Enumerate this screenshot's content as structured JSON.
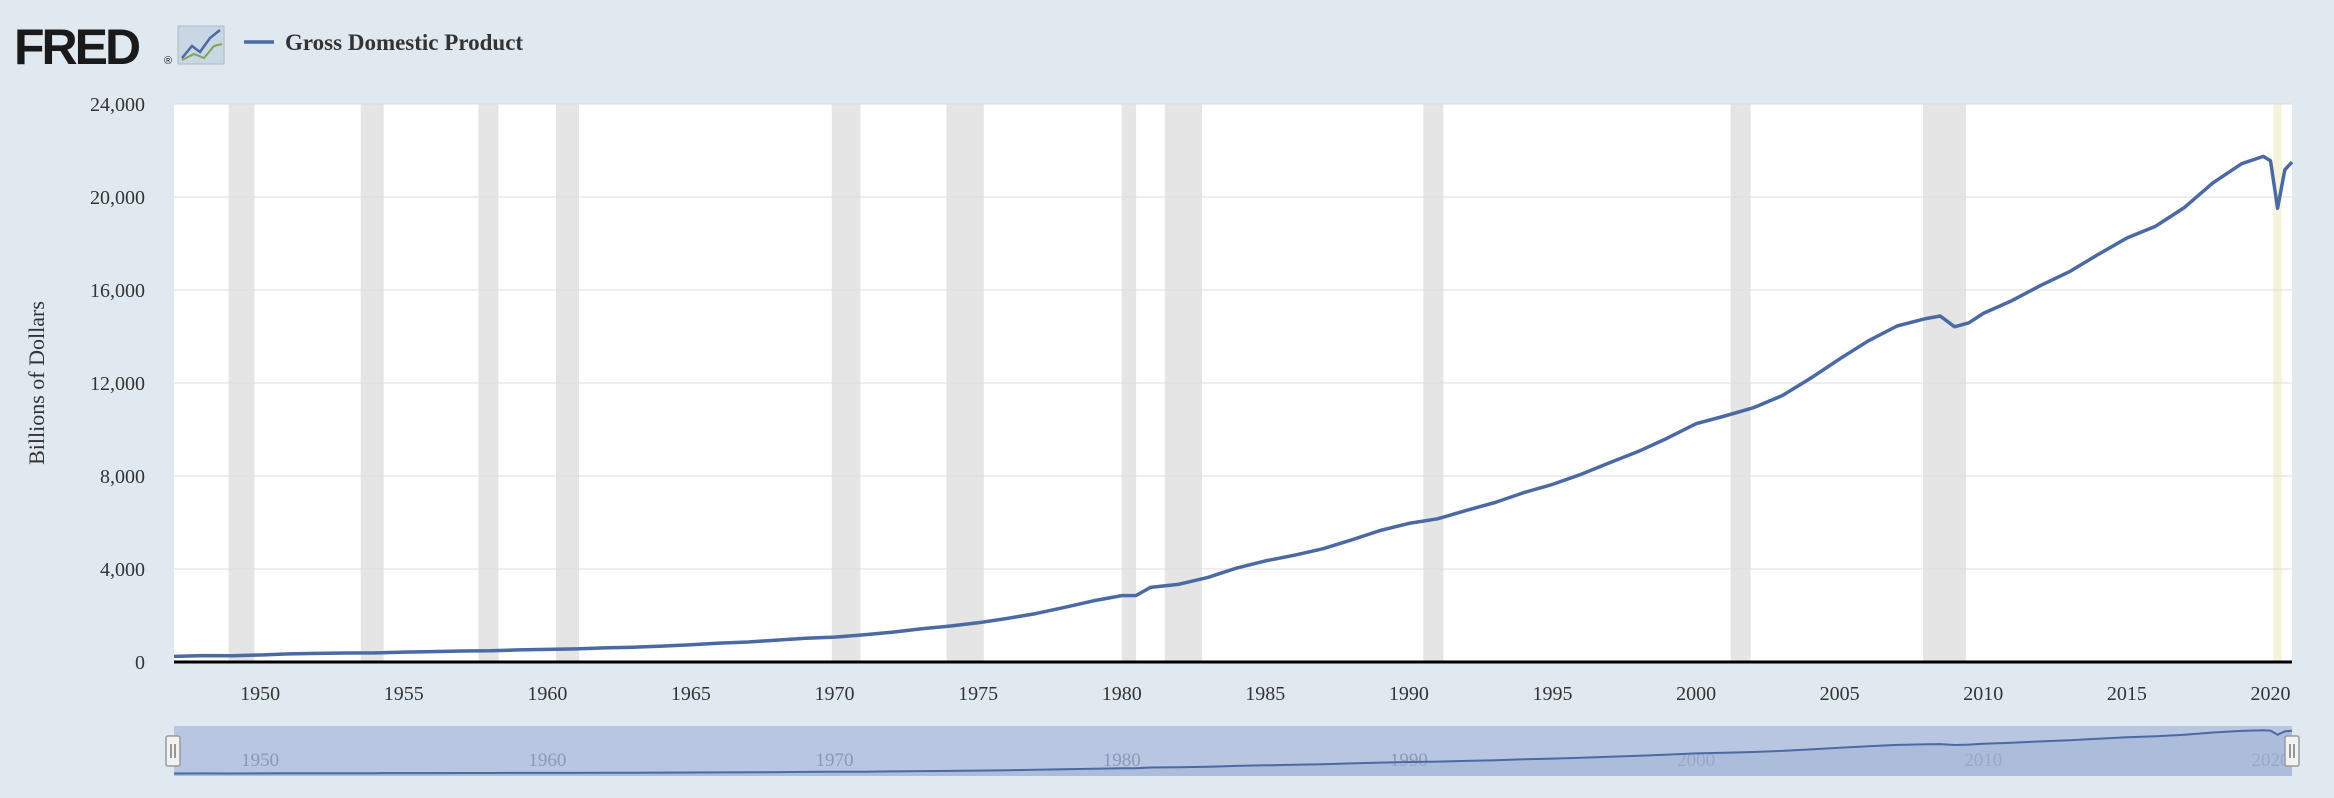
{
  "header": {
    "logo_text": "FRED",
    "logo_mark": "®",
    "logo_icon": "line-chart-icon"
  },
  "colors": {
    "background": "#e1e9f0",
    "plot_background": "#ffffff",
    "series_line": "#4b6aa3",
    "recession_band": "#e5e5e5",
    "recession_band_partial": "#f5f3dc",
    "gridline": "#dddddd",
    "navigator_fill": "#b8c6e2",
    "navigator_line": "#4b6aa3"
  },
  "chart_data": {
    "type": "line",
    "title": "",
    "xlabel": "",
    "ylabel": "Billions of Dollars",
    "xlim": [
      1947.0,
      2020.75
    ],
    "ylim": [
      0,
      24000
    ],
    "yticks": [
      0,
      4000,
      8000,
      12000,
      16000,
      20000,
      24000
    ],
    "ytick_labels": [
      "0",
      "4,000",
      "8,000",
      "12,000",
      "16,000",
      "20,000",
      "24,000"
    ],
    "xticks": [
      1950,
      1955,
      1960,
      1965,
      1970,
      1975,
      1980,
      1985,
      1990,
      1995,
      2000,
      2005,
      2010,
      2015,
      2020
    ],
    "xtick_labels": [
      "1950",
      "1955",
      "1960",
      "1965",
      "1970",
      "1975",
      "1980",
      "1985",
      "1990",
      "1995",
      "2000",
      "2005",
      "2010",
      "2015",
      "2020"
    ],
    "grid": true,
    "legend_position": "top-left",
    "series": [
      {
        "name": "Gross Domestic Product",
        "x": [
          1947.0,
          1948.0,
          1949.0,
          1950.0,
          1951.0,
          1952.0,
          1953.0,
          1954.0,
          1955.0,
          1956.0,
          1957.0,
          1958.0,
          1959.0,
          1960.0,
          1961.0,
          1962.0,
          1963.0,
          1964.0,
          1965.0,
          1966.0,
          1967.0,
          1968.0,
          1969.0,
          1970.0,
          1971.0,
          1972.0,
          1973.0,
          1974.0,
          1975.0,
          1976.0,
          1977.0,
          1978.0,
          1979.0,
          1980.0,
          1980.5,
          1981.0,
          1982.0,
          1983.0,
          1984.0,
          1985.0,
          1986.0,
          1987.0,
          1988.0,
          1989.0,
          1990.0,
          1991.0,
          1992.0,
          1993.0,
          1994.0,
          1995.0,
          1996.0,
          1997.0,
          1998.0,
          1999.0,
          2000.0,
          2001.0,
          2002.0,
          2003.0,
          2004.0,
          2005.0,
          2006.0,
          2007.0,
          2008.0,
          2008.5,
          2009.0,
          2009.5,
          2010.0,
          2011.0,
          2012.0,
          2013.0,
          2014.0,
          2015.0,
          2016.0,
          2017.0,
          2018.0,
          2019.0,
          2019.75,
          2020.0,
          2020.25,
          2020.5,
          2020.75
        ],
        "values": [
          243,
          275,
          271,
          300,
          348,
          368,
          389,
          391,
          426,
          449,
          474,
          482,
          522,
          543,
          563,
          605,
          638,
          686,
          743,
          815,
          862,
          943,
          1020,
          1073,
          1165,
          1280,
          1425,
          1545,
          1685,
          1873,
          2081,
          2350,
          2627,
          2857,
          2860,
          3207,
          3345,
          3638,
          4040,
          4347,
          4590,
          4870,
          5253,
          5657,
          5963,
          6158,
          6520,
          6859,
          7287,
          7640,
          8073,
          8577,
          9062,
          9631,
          10250,
          10582,
          10936,
          11458,
          12214,
          13037,
          13815,
          14452,
          14770,
          14880,
          14418,
          14590,
          14992,
          15543,
          16197,
          16785,
          17527,
          18238,
          18745,
          19543,
          20612,
          21433,
          21747,
          21561,
          19520,
          21170,
          21500
        ]
      }
    ],
    "recessions": [
      [
        1948.9,
        1949.8
      ],
      [
        1953.5,
        1954.3
      ],
      [
        1957.6,
        1958.3
      ],
      [
        1960.3,
        1961.1
      ],
      [
        1969.9,
        1970.9
      ],
      [
        1973.9,
        1975.2
      ],
      [
        1980.0,
        1980.5
      ],
      [
        1981.5,
        1982.8
      ],
      [
        1990.5,
        1991.2
      ],
      [
        2001.2,
        2001.9
      ],
      [
        2007.9,
        2009.4
      ],
      [
        2020.1,
        2020.4
      ]
    ],
    "navigator": {
      "xticks": [
        1950,
        1960,
        1970,
        1980,
        1990,
        2000,
        2010,
        2020
      ],
      "xtick_labels": [
        "1950",
        "1960",
        "1970",
        "1980",
        "1990",
        "2000",
        "2010",
        "2020"
      ]
    }
  }
}
